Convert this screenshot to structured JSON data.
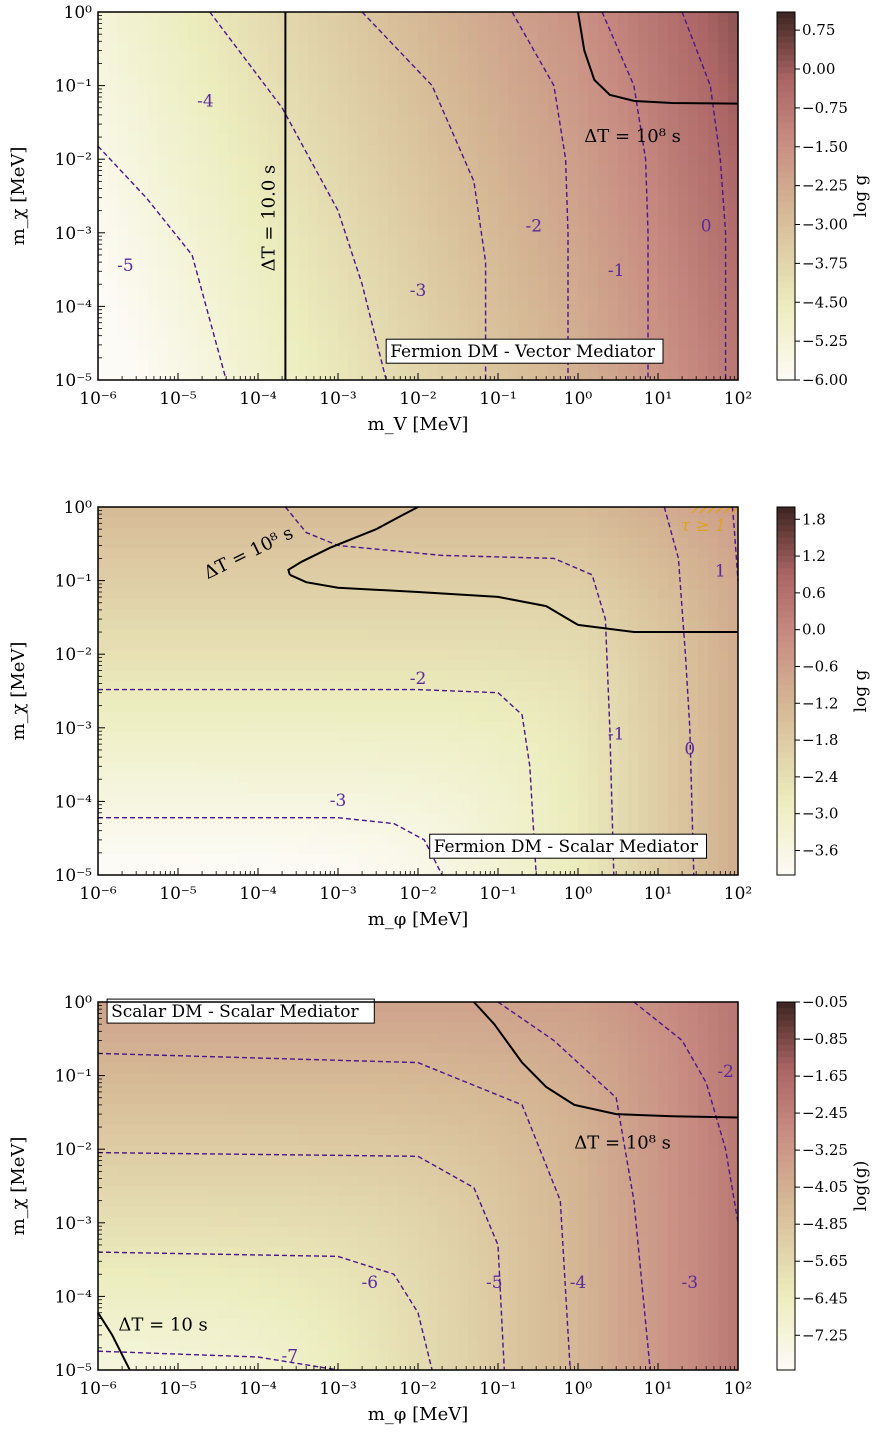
{
  "chart_data": [
    {
      "type": "heatmap",
      "panel_label": "Fermion DM - Vector Mediator",
      "xlabel": "m_V [MeV]",
      "ylabel": "m_χ [MeV]",
      "xscale": "log",
      "yscale": "log",
      "xlim": [
        1e-06,
        100
      ],
      "ylim": [
        1e-05,
        1
      ],
      "x_ticks": [
        "10^-6",
        "10^-5",
        "10^-4",
        "10^-3",
        "10^-2",
        "10^-1",
        "10^0",
        "10^1",
        "10^2"
      ],
      "y_ticks": [
        "10^-5",
        "10^-4",
        "10^-3",
        "10^-2",
        "10^-1",
        "10^0"
      ],
      "colorbar_label": "log g",
      "colorbar_range": [
        -6.0,
        1.1
      ],
      "colorbar_ticks": [
        "0.75",
        "0.00",
        "−0.75",
        "−1.50",
        "−2.25",
        "−3.00",
        "−3.75",
        "−4.50",
        "−5.25",
        "−6.00"
      ],
      "colorbar_tick_values": [
        0.75,
        0.0,
        -0.75,
        -1.5,
        -2.25,
        -3.0,
        -3.75,
        -4.5,
        -5.25,
        -6.0
      ],
      "log_g_model": {
        "c": 2.35,
        "a": 0.36,
        "b": 0.38,
        "s": 1.8
      },
      "contour_levels": [
        -5,
        -4,
        -3,
        -2,
        -1,
        0
      ],
      "contour_labels": [
        {
          "text": "-5",
          "x": 2.2e-06,
          "y": 0.00035
        },
        {
          "text": "-4",
          "x": 2.2e-05,
          "y": 0.06
        },
        {
          "text": "-3",
          "x": 0.01,
          "y": 0.00016
        },
        {
          "text": "-2",
          "x": 0.28,
          "y": 0.0012
        },
        {
          "text": "-1",
          "x": 3.0,
          "y": 0.0003
        },
        {
          "text": "0",
          "x": 40,
          "y": 0.0012
        }
      ],
      "dt_lines": [
        {
          "label": "ΔT = 10.0 s",
          "points": [
            [
              0.00022,
              1e-05
            ],
            [
              0.00022,
              1
            ]
          ]
        },
        {
          "label": "ΔT = 10⁸ s",
          "points": [
            [
              1.0,
              1
            ],
            [
              1.2,
              0.3
            ],
            [
              1.6,
              0.12
            ],
            [
              2.5,
              0.075
            ],
            [
              5,
              0.062
            ],
            [
              15,
              0.058
            ],
            [
              100,
              0.057
            ]
          ]
        }
      ],
      "dt_labels": [
        {
          "text": "ΔT = 10.0 s",
          "x": 0.00014,
          "y": 0.0003,
          "rotate": -90
        },
        {
          "text": "ΔT = 10⁸ s",
          "x": 1.2,
          "y": 0.02,
          "rotate": 0
        }
      ],
      "panel_label_pos": {
        "x": 0.004,
        "y": 1.8e-05
      }
    },
    {
      "type": "heatmap",
      "panel_label": "Fermion DM - Scalar Mediator",
      "xlabel": "m_φ [MeV]",
      "ylabel": "m_χ [MeV]",
      "xscale": "log",
      "yscale": "log",
      "xlim": [
        1e-06,
        100
      ],
      "ylim": [
        1e-05,
        1
      ],
      "x_ticks": [
        "10^-6",
        "10^-5",
        "10^-4",
        "10^-3",
        "10^-2",
        "10^-1",
        "10^0",
        "10^1",
        "10^2"
      ],
      "y_ticks": [
        "10^-5",
        "10^-4",
        "10^-3",
        "10^-2",
        "10^-1",
        "10^0"
      ],
      "colorbar_label": "log g",
      "colorbar_range": [
        -4.0,
        2.0
      ],
      "colorbar_ticks": [
        "1.8",
        "1.2",
        "0.6",
        "0.0",
        "−0.6",
        "−1.2",
        "−1.8",
        "−2.4",
        "−3.0",
        "−3.6"
      ],
      "colorbar_tick_values": [
        1.8,
        1.2,
        0.6,
        0.0,
        -0.6,
        -1.2,
        -1.8,
        -2.4,
        -3.0,
        -3.6
      ],
      "log_g_model": {
        "c": 0.2,
        "a": 0.5,
        "b": 0.5,
        "s": 1.6,
        "x0": -0.5,
        "y0": -2.6,
        "y0_shift_k": 0.6,
        "base": -2.7,
        "floor_x": -2.0
      },
      "contour_levels": [
        -3,
        -2,
        -1,
        0,
        1
      ],
      "contour_labels": [
        {
          "text": "-3",
          "x": 0.001,
          "y": 0.0001
        },
        {
          "text": "-2",
          "x": 0.01,
          "y": 0.0045
        },
        {
          "text": "-1",
          "x": 3.0,
          "y": 0.0008
        },
        {
          "text": "0",
          "x": 25,
          "y": 0.0005
        },
        {
          "text": "1",
          "x": 60,
          "y": 0.13
        }
      ],
      "dt_lines": [
        {
          "label": "ΔT = 10⁸ s",
          "points": [
            [
              0.00025,
              0.12
            ],
            [
              0.00024,
              0.14
            ],
            [
              0.00035,
              0.18
            ],
            [
              0.0008,
              0.28
            ],
            [
              0.003,
              0.5
            ],
            [
              0.006,
              0.75
            ],
            [
              0.01,
              1
            ]
          ]
        },
        {
          "label": "",
          "points": [
            [
              0.00025,
              0.12
            ],
            [
              0.0004,
              0.095
            ],
            [
              0.001,
              0.08
            ],
            [
              0.01,
              0.07
            ],
            [
              0.1,
              0.06
            ],
            [
              0.4,
              0.045
            ],
            [
              1,
              0.025
            ],
            [
              5,
              0.02
            ],
            [
              100,
              0.02
            ]
          ]
        }
      ],
      "dt_labels": [
        {
          "text": "ΔT = 10⁸ s",
          "x": 2.2e-05,
          "y": 0.12,
          "rotate": -26
        }
      ],
      "hatch_region": {
        "label": "τ ≥ 1",
        "x_min": 20,
        "y_min": 0.6
      },
      "panel_label_pos": {
        "x": 0.014,
        "y": 1.8e-05
      }
    },
    {
      "type": "heatmap",
      "panel_label": "Scalar DM - Scalar Mediator",
      "xlabel": "m_φ [MeV]",
      "ylabel": "m_χ [MeV]",
      "xscale": "log",
      "yscale": "log",
      "xlim": [
        1e-06,
        100
      ],
      "ylim": [
        1e-05,
        1
      ],
      "x_ticks": [
        "10^-6",
        "10^-5",
        "10^-4",
        "10^-3",
        "10^-2",
        "10^-1",
        "10^0",
        "10^1",
        "10^2"
      ],
      "y_ticks": [
        "10^-5",
        "10^-4",
        "10^-3",
        "10^-2",
        "10^-1",
        "10^0"
      ],
      "colorbar_label": "log(g)",
      "colorbar_range": [
        -8.0,
        -0.05
      ],
      "colorbar_ticks": [
        "−0.05",
        "−0.85",
        "−1.65",
        "−2.45",
        "−3.25",
        "−4.05",
        "−4.85",
        "−5.65",
        "−6.45",
        "−7.25"
      ],
      "colorbar_tick_values": [
        -0.05,
        -0.85,
        -1.65,
        -2.45,
        -3.25,
        -4.05,
        -4.85,
        -5.65,
        -6.45,
        -7.25
      ],
      "log_g_model": {
        "c": -2.0,
        "a": 0.35,
        "b": 0.45,
        "s": 2.5,
        "x0": -1.0,
        "y0": -1.6,
        "base": -7.5
      },
      "contour_levels": [
        -7,
        -6,
        -5,
        -4,
        -3,
        -2
      ],
      "contour_labels": [
        {
          "text": "-7",
          "x": 0.00025,
          "y": 1.5e-05
        },
        {
          "text": "-6",
          "x": 0.0025,
          "y": 0.00015
        },
        {
          "text": "-5",
          "x": 0.09,
          "y": 0.00015
        },
        {
          "text": "-4",
          "x": 1.0,
          "y": 0.00015
        },
        {
          "text": "-3",
          "x": 25,
          "y": 0.00015
        },
        {
          "text": "-2",
          "x": 70,
          "y": 0.11
        }
      ],
      "dt_lines": [
        {
          "label": "ΔT = 10⁸ s",
          "points": [
            [
              0.05,
              1
            ],
            [
              0.09,
              0.5
            ],
            [
              0.2,
              0.15
            ],
            [
              0.4,
              0.07
            ],
            [
              0.9,
              0.04
            ],
            [
              3,
              0.03
            ],
            [
              15,
              0.028
            ],
            [
              100,
              0.027
            ]
          ]
        },
        {
          "label": "ΔT = 10 s",
          "points": [
            [
              1e-06,
              6e-05
            ],
            [
              1.5e-06,
              3e-05
            ],
            [
              2.5e-06,
              1e-05
            ]
          ]
        }
      ],
      "dt_labels": [
        {
          "text": "ΔT = 10⁸ s",
          "x": 0.9,
          "y": 0.012,
          "rotate": 0
        },
        {
          "text": "ΔT = 10 s",
          "x": 1.8e-06,
          "y": 4e-05,
          "rotate": 0
        }
      ],
      "panel_label_pos": {
        "x": 1.3e-06,
        "y": 0.55
      }
    }
  ]
}
